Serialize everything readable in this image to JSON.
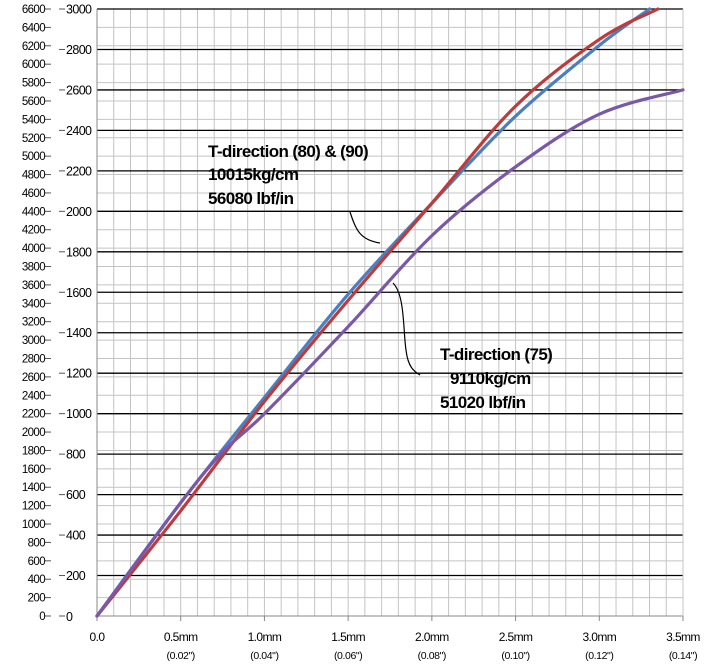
{
  "chart_data": {
    "type": "line",
    "title": "",
    "xlabel": "",
    "ylabel": "",
    "grid": true,
    "x_unit": "mm",
    "xlim": [
      0,
      3.5
    ],
    "ylim_left": [
      0,
      6600
    ],
    "ylim_right": [
      0,
      3000
    ],
    "x_ticks": [
      {
        "value": 0.0,
        "label": "0.0",
        "sub": ""
      },
      {
        "value": 0.5,
        "label": "0.5mm",
        "sub": "(0.02\")"
      },
      {
        "value": 1.0,
        "label": "1.0mm",
        "sub": "(0.04\")"
      },
      {
        "value": 1.5,
        "label": "1.5mm",
        "sub": "(0.06\")"
      },
      {
        "value": 2.0,
        "label": "2.0mm",
        "sub": "(0.08\")"
      },
      {
        "value": 2.5,
        "label": "2.5mm",
        "sub": "(0.10\")"
      },
      {
        "value": 3.0,
        "label": "3.0mm",
        "sub": "(0.12\")"
      },
      {
        "value": 3.5,
        "label": "3.5mm",
        "sub": "(0.14\")"
      }
    ],
    "y_ticks_left": [
      "0",
      "200",
      "400",
      "600",
      "800",
      "1000",
      "1200",
      "1400",
      "1600",
      "1800",
      "2000",
      "2200",
      "2400",
      "2600",
      "2800",
      "3000",
      "3200",
      "3400",
      "3600",
      "3800",
      "4000",
      "4200",
      "4400",
      "4600",
      "4800",
      "5000",
      "5200",
      "5400",
      "5600",
      "5800",
      "6000",
      "6200",
      "6400",
      "6600"
    ],
    "y_ticks_right": [
      "200",
      "400",
      "600",
      "800",
      "1000",
      "1200",
      "1400",
      "1600",
      "1800",
      "2000",
      "2200",
      "2400",
      "2600",
      "2800",
      "3000"
    ],
    "y_tick_right_zero": "0",
    "series": [
      {
        "color": "#4a7fc0",
        "axis": "right",
        "x": [
          0,
          0.5,
          1.0,
          1.5,
          2.0,
          2.5,
          3.0,
          3.3
        ],
        "y": [
          0,
          560,
          1080,
          1590,
          2040,
          2470,
          2820,
          3000
        ]
      },
      {
        "color": "#bb3c3a",
        "axis": "right",
        "x": [
          0,
          0.5,
          1.0,
          1.5,
          2.0,
          2.5,
          3.0,
          3.35
        ],
        "y": [
          0,
          520,
          1060,
          1560,
          2040,
          2520,
          2850,
          3000
        ]
      },
      {
        "color": "#7a58a8",
        "axis": "right",
        "x": [
          0,
          0.5,
          0.75,
          1.0,
          1.5,
          2.0,
          2.5,
          3.0,
          3.5
        ],
        "y": [
          0,
          560,
          810,
          1000,
          1430,
          1880,
          2220,
          2480,
          2600
        ]
      }
    ],
    "annotations": [
      {
        "lines": [
          "T-direction (80) & (90)",
          "10015kg/cm",
          "56080 lbf/in"
        ]
      },
      {
        "lines": [
          "T-direction (75)",
          "9110kg/cm",
          "51020 lbf/in"
        ]
      }
    ]
  }
}
